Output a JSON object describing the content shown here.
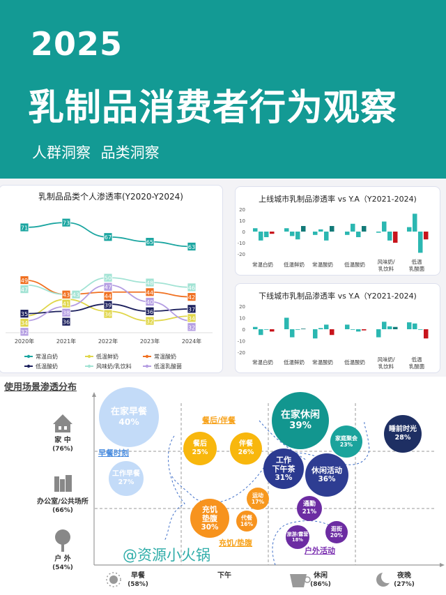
{
  "header": {
    "year": "2025",
    "title": "乳制品消费者行为观察",
    "subtitle": "人群洞察  品类洞察"
  },
  "chart_data": [
    {
      "type": "line",
      "title": "乳制品品类个人渗透率(Y2020-Y2024)",
      "categories": [
        "2020年",
        "2021年",
        "2022年",
        "2023年",
        "2024年"
      ],
      "legend_position": "bottom",
      "grid": false,
      "series": [
        {
          "name": "常温白奶",
          "color": "#1aa5a0",
          "values": [
            71,
            73,
            67,
            65,
            63
          ]
        },
        {
          "name": "低温鲜奶",
          "color": "#e0d64a",
          "values": [
            34,
            41,
            36,
            32,
            34
          ]
        },
        {
          "name": "常温酸奶",
          "color": "#f07020",
          "values": [
            49,
            43,
            44,
            44,
            42
          ]
        },
        {
          "name": "低温酸奶",
          "color": "#1b1f5c",
          "values": [
            35,
            36,
            39,
            36,
            37
          ]
        },
        {
          "name": "风味奶/乳饮料",
          "color": "#a2e3d4",
          "values": [
            47,
            43,
            50,
            48,
            46
          ]
        },
        {
          "name": "低温乳酸菌",
          "color": "#b49de2",
          "values": [
            32,
            38,
            47,
            40,
            32
          ]
        }
      ]
    },
    {
      "type": "bar",
      "title": "上线城市乳制品渗透率 vs Y.A（Y2021-2024)",
      "ylim": [
        -20,
        20
      ],
      "yticks": [
        20,
        10,
        0,
        -10,
        -20
      ],
      "categories": [
        "常温白奶",
        "低温鲜奶",
        "常温酸奶",
        "低温酸奶",
        "风味奶/\n乳饮料",
        "低温\n乳酸菌"
      ],
      "values": [
        [
          3,
          -8,
          -5,
          -2
        ],
        [
          3,
          -4,
          -7,
          5
        ],
        [
          -3,
          2,
          -8,
          5
        ],
        [
          -3,
          7,
          -5,
          5
        ],
        [
          -1,
          9,
          -8,
          -10
        ],
        [
          4,
          16,
          -19,
          -7
        ]
      ]
    },
    {
      "type": "bar",
      "title": "下线城市乳制品渗透率 vs Y.A（Y2021-2024)",
      "ylim": [
        -20,
        20
      ],
      "yticks": [
        20,
        10,
        0,
        -10,
        -20
      ],
      "categories": [
        "常温白奶",
        "低温鲜奶",
        "常温酸奶",
        "低温酸奶",
        "风味奶/\n乳饮料",
        "低温\n乳酸菌"
      ],
      "values": [
        [
          2,
          -5,
          0,
          -2
        ],
        [
          10,
          -7,
          -0.5,
          0.5
        ],
        [
          -8,
          1,
          4,
          -5
        ],
        [
          4,
          0,
          -2,
          -1
        ],
        [
          -7,
          6.5,
          2.5,
          2
        ],
        [
          6,
          5,
          0,
          -8
        ]
      ]
    }
  ],
  "colors": {
    "bar": "#2bb7b1",
    "bar_last_pos": "#137a78",
    "bar_last_neg": "#c8141c",
    "header": "#139a94"
  },
  "scenes": {
    "title": "使用场景渗透分布",
    "y_axis": [
      {
        "icon": "house-icon",
        "label": "家 中",
        "pct": "(76%)"
      },
      {
        "icon": "building-icon",
        "label": "办公室/公共场所",
        "pct": "(66%)"
      },
      {
        "icon": "tree-icon",
        "label": "户 外",
        "pct": "(54%)"
      }
    ],
    "x_axis": [
      {
        "icon": "sun-icon",
        "label": "早餐",
        "pct": "(58%)"
      },
      {
        "icon": "",
        "label": "下午",
        "pct": ""
      },
      {
        "icon": "coffee-icon",
        "label": "休闲",
        "pct": "(86%)"
      },
      {
        "icon": "moon-icon",
        "label": "夜晚",
        "pct": "(27%)"
      }
    ],
    "groups": [
      "早餐时刻",
      "餐后/伴餐",
      "充饥/垫腹",
      "户外活动"
    ],
    "bubbles": [
      {
        "name": "在家早餐",
        "pct": "40%",
        "color": "#c3dbf8"
      },
      {
        "name": "工作早餐",
        "pct": "27%",
        "color": "#c3dbf8"
      },
      {
        "name": "餐后",
        "pct": "25%",
        "color": "#f8b70d"
      },
      {
        "name": "伴餐",
        "pct": "26%",
        "color": "#f8b70d"
      },
      {
        "name": "在家休闲",
        "pct": "39%",
        "color": "#12968f"
      },
      {
        "name": "家庭聚会",
        "pct": "23%",
        "color": "#1aa39c"
      },
      {
        "name": "睡前时光",
        "pct": "28%",
        "color": "#1e2f63"
      },
      {
        "name": "工作\n下午茶",
        "pct": "31%",
        "color": "#2b3a90"
      },
      {
        "name": "休闲活动",
        "pct": "36%",
        "color": "#2e3d92"
      },
      {
        "name": "运动",
        "pct": "17%",
        "color": "#f7981f"
      },
      {
        "name": "充饥\n垫腹",
        "pct": "30%",
        "color": "#f7931e"
      },
      {
        "name": "代餐",
        "pct": "16%",
        "color": "#f7931e"
      },
      {
        "name": "通勤",
        "pct": "21%",
        "color": "#6c2ca2"
      },
      {
        "name": "旅游/露营",
        "pct": "18%",
        "color": "#6c2ca2"
      },
      {
        "name": "逛街",
        "pct": "20%",
        "color": "#6c2ca2"
      }
    ]
  },
  "watermark": "@资源小火锅"
}
